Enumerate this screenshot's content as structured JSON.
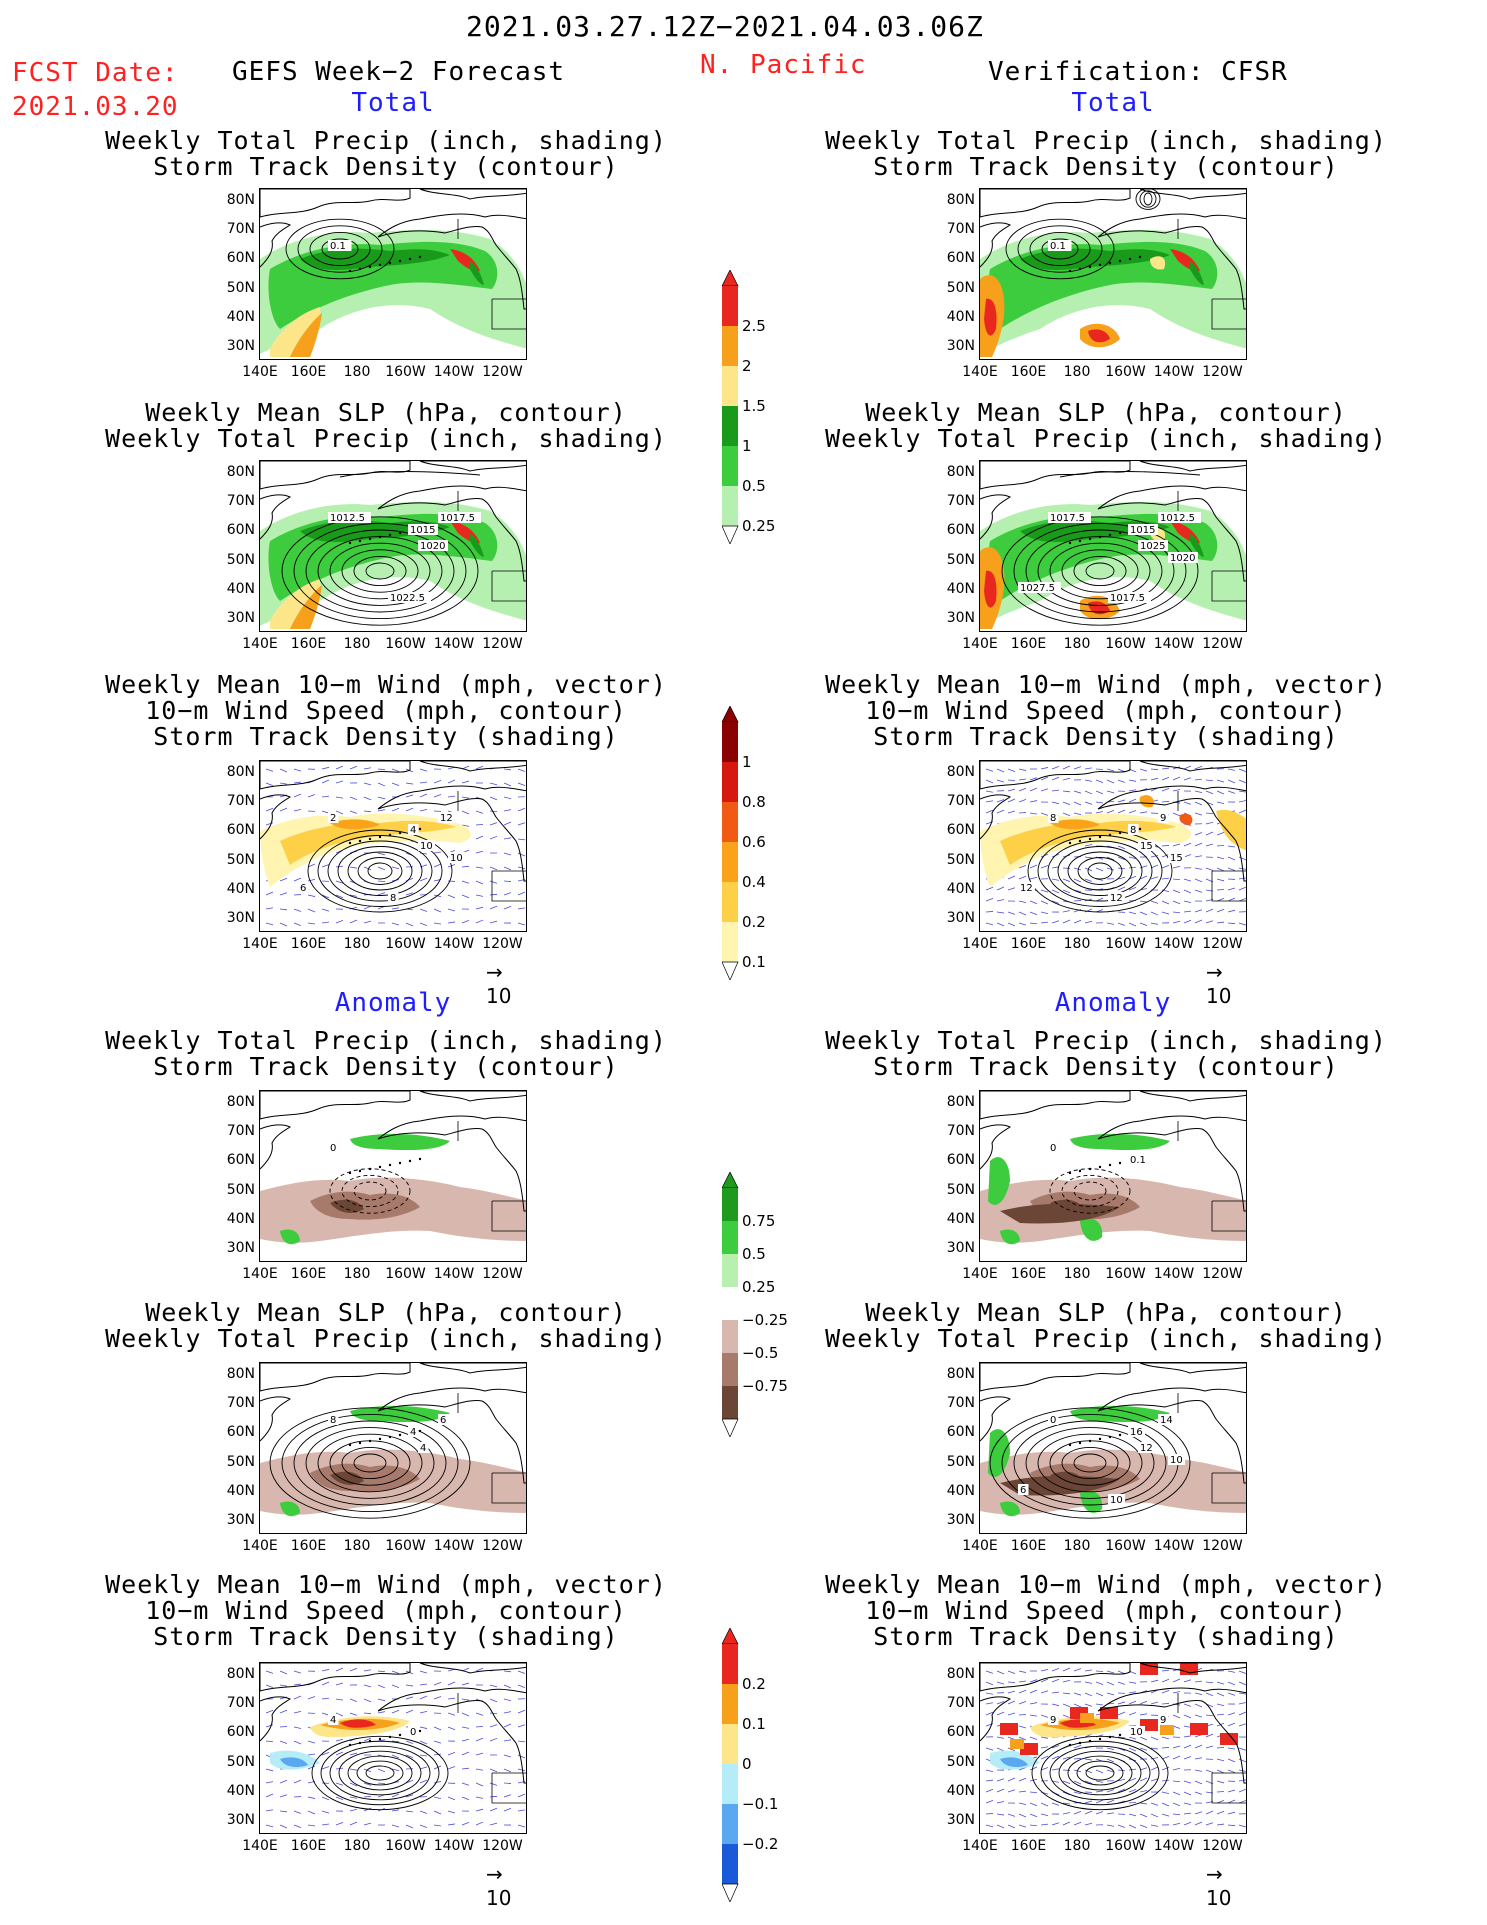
{
  "header": {
    "period": "2021.03.27.12Z−2021.04.03.06Z",
    "fcst_label": "FCST Date:",
    "fcst_date": "2021.03.20",
    "forecast_title": "GEFS Week−2 Forecast",
    "region": "N. Pacific",
    "verification": "Verification: CFSR"
  },
  "sections": {
    "total": "Total",
    "anomaly": "Anomaly"
  },
  "panel_titles": {
    "precip_storm": [
      "Weekly Total Precip (inch, shading)",
      "Storm Track Density (contour)"
    ],
    "slp_precip": [
      "Weekly Mean SLP (hPa, contour)",
      "Weekly Total Precip (inch, shading)"
    ],
    "wind_storm": [
      "Weekly Mean 10−m Wind (mph, vector)",
      "10−m Wind Speed (mph, contour)",
      "Storm Track Density (shading)"
    ]
  },
  "axes": {
    "lat_labels": [
      "80N",
      "70N",
      "60N",
      "50N",
      "40N",
      "30N"
    ],
    "lon_labels": [
      "140E",
      "160E",
      "180",
      "160W",
      "140W",
      "120W"
    ]
  },
  "vector_reference": "10",
  "colorbars": {
    "precip_total": {
      "labels": [
        "2.5",
        "2",
        "1.5",
        "1",
        "0.5",
        "0.25"
      ],
      "colors": [
        "#e8281e",
        "#f6a01c",
        "#fde68a",
        "#1a9a1a",
        "#3dcc3d",
        "#b6f0b0"
      ]
    },
    "storm_total": {
      "labels": [
        "1",
        "0.8",
        "0.6",
        "0.4",
        "0.2",
        "0.1"
      ],
      "colors": [
        "#8b0000",
        "#d7180e",
        "#f05a14",
        "#f9a21a",
        "#fdd048",
        "#fff5b0"
      ]
    },
    "precip_anom": {
      "labels": [
        "0.75",
        "0.5",
        "0.25",
        "−0.25",
        "−0.5",
        "−0.75"
      ],
      "colors": [
        "#1f9a1f",
        "#3dcc3d",
        "#b8f0b0",
        "#ffffff",
        "#d8b8ae",
        "#a87a6c",
        "#6b4637"
      ]
    },
    "storm_anom": {
      "labels": [
        "0.2",
        "0.1",
        "0",
        "−0.1",
        "−0.2"
      ],
      "colors": [
        "#e8281e",
        "#f6a01c",
        "#fde68a",
        "#b4ecf8",
        "#5aa8f0",
        "#1a5ad8"
      ]
    }
  },
  "contour_labels": {
    "p1": [
      "0.1"
    ],
    "p2": [
      "1012.5",
      "1015",
      "1017.5",
      "1020",
      "1022.5"
    ],
    "p3": [
      "2",
      "4",
      "12",
      "10",
      "8",
      "6",
      "10"
    ],
    "p4": [
      "0"
    ],
    "p5": [
      "8",
      "4",
      "6",
      "4"
    ],
    "p6": [
      "4",
      "0"
    ],
    "q1": [
      "0.1"
    ],
    "q2": [
      "1017.5",
      "1015",
      "1012.5",
      "1025",
      "1017.5",
      "1027.5",
      "1020"
    ],
    "q3": [
      "8",
      "8",
      "9",
      "15",
      "12",
      "12",
      "15"
    ],
    "q4": [
      "0",
      "0.1"
    ],
    "q5": [
      "0",
      "16",
      "14",
      "12",
      "10",
      "6",
      "10"
    ],
    "q6": [
      "9",
      "10",
      "9"
    ]
  }
}
